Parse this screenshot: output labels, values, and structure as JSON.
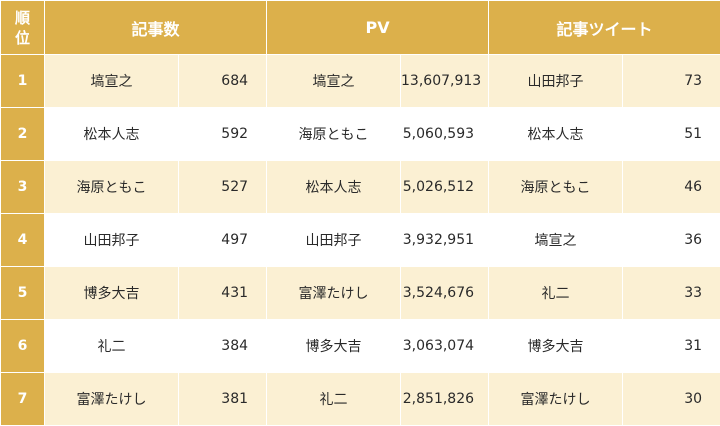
{
  "header": {
    "rank": "順位",
    "articles": "記事数",
    "pv": "PV",
    "tweets": "記事ツイート"
  },
  "rows": [
    {
      "rank": "1",
      "a_name": "塙宣之",
      "a_val": "684",
      "p_name": "塙宣之",
      "p_val": "13,607,913",
      "t_name": "山田邦子",
      "t_val": "73"
    },
    {
      "rank": "2",
      "a_name": "松本人志",
      "a_val": "592",
      "p_name": "海原ともこ",
      "p_val": "5,060,593",
      "t_name": "松本人志",
      "t_val": "51"
    },
    {
      "rank": "3",
      "a_name": "海原ともこ",
      "a_val": "527",
      "p_name": "松本人志",
      "p_val": "5,026,512",
      "t_name": "海原ともこ",
      "t_val": "46"
    },
    {
      "rank": "4",
      "a_name": "山田邦子",
      "a_val": "497",
      "p_name": "山田邦子",
      "p_val": "3,932,951",
      "t_name": "塙宣之",
      "t_val": "36"
    },
    {
      "rank": "5",
      "a_name": "博多大吉",
      "a_val": "431",
      "p_name": "富澤たけし",
      "p_val": "3,524,676",
      "t_name": "礼二",
      "t_val": "33"
    },
    {
      "rank": "6",
      "a_name": "礼二",
      "a_val": "384",
      "p_name": "博多大吉",
      "p_val": "3,063,074",
      "t_name": "博多大吉",
      "t_val": "31"
    },
    {
      "rank": "7",
      "a_name": "富澤たけし",
      "a_val": "381",
      "p_name": "礼二",
      "p_val": "2,851,826",
      "t_name": "富澤たけし",
      "t_val": "30"
    }
  ]
}
